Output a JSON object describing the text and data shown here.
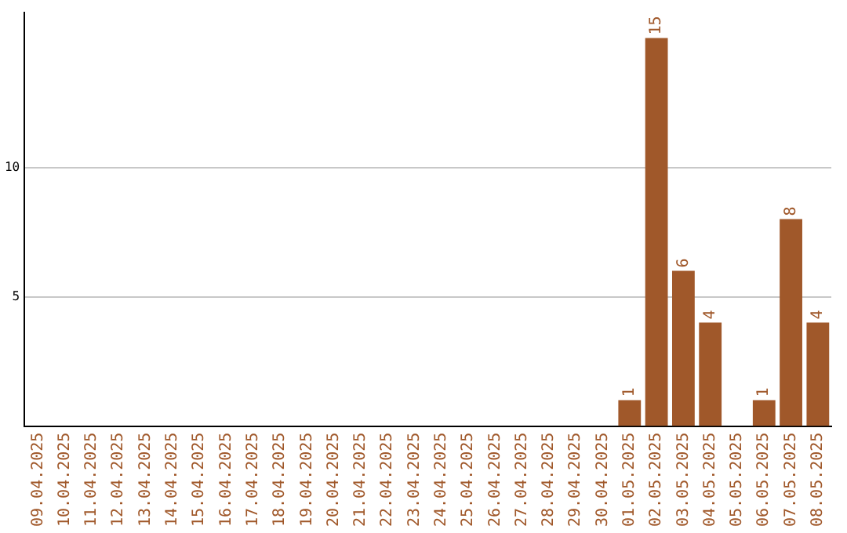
{
  "chart_data": {
    "type": "bar",
    "categories": [
      "09.04.2025",
      "10.04.2025",
      "11.04.2025",
      "12.04.2025",
      "13.04.2025",
      "14.04.2025",
      "15.04.2025",
      "16.04.2025",
      "17.04.2025",
      "18.04.2025",
      "19.04.2025",
      "20.04.2025",
      "21.04.2025",
      "22.04.2025",
      "23.04.2025",
      "24.04.2025",
      "25.04.2025",
      "26.04.2025",
      "27.04.2025",
      "28.04.2025",
      "29.04.2025",
      "30.04.2025",
      "01.05.2025",
      "02.05.2025",
      "03.05.2025",
      "04.05.2025",
      "05.05.2025",
      "06.05.2025",
      "07.05.2025",
      "08.05.2025"
    ],
    "values": [
      0,
      0,
      0,
      0,
      0,
      0,
      0,
      0,
      0,
      0,
      0,
      0,
      0,
      0,
      0,
      0,
      0,
      0,
      0,
      0,
      0,
      0,
      1,
      15,
      6,
      4,
      0,
      1,
      8,
      4
    ],
    "value_labels": [
      null,
      null,
      null,
      null,
      null,
      null,
      null,
      null,
      null,
      null,
      null,
      null,
      null,
      null,
      null,
      null,
      null,
      null,
      null,
      null,
      null,
      null,
      "1",
      "15",
      "6",
      "4",
      null,
      "1",
      "8",
      "4"
    ],
    "color": "#a0582a",
    "ylim": [
      0,
      16
    ],
    "yticks": [
      5,
      10
    ],
    "grid": "y",
    "legend": false
  }
}
